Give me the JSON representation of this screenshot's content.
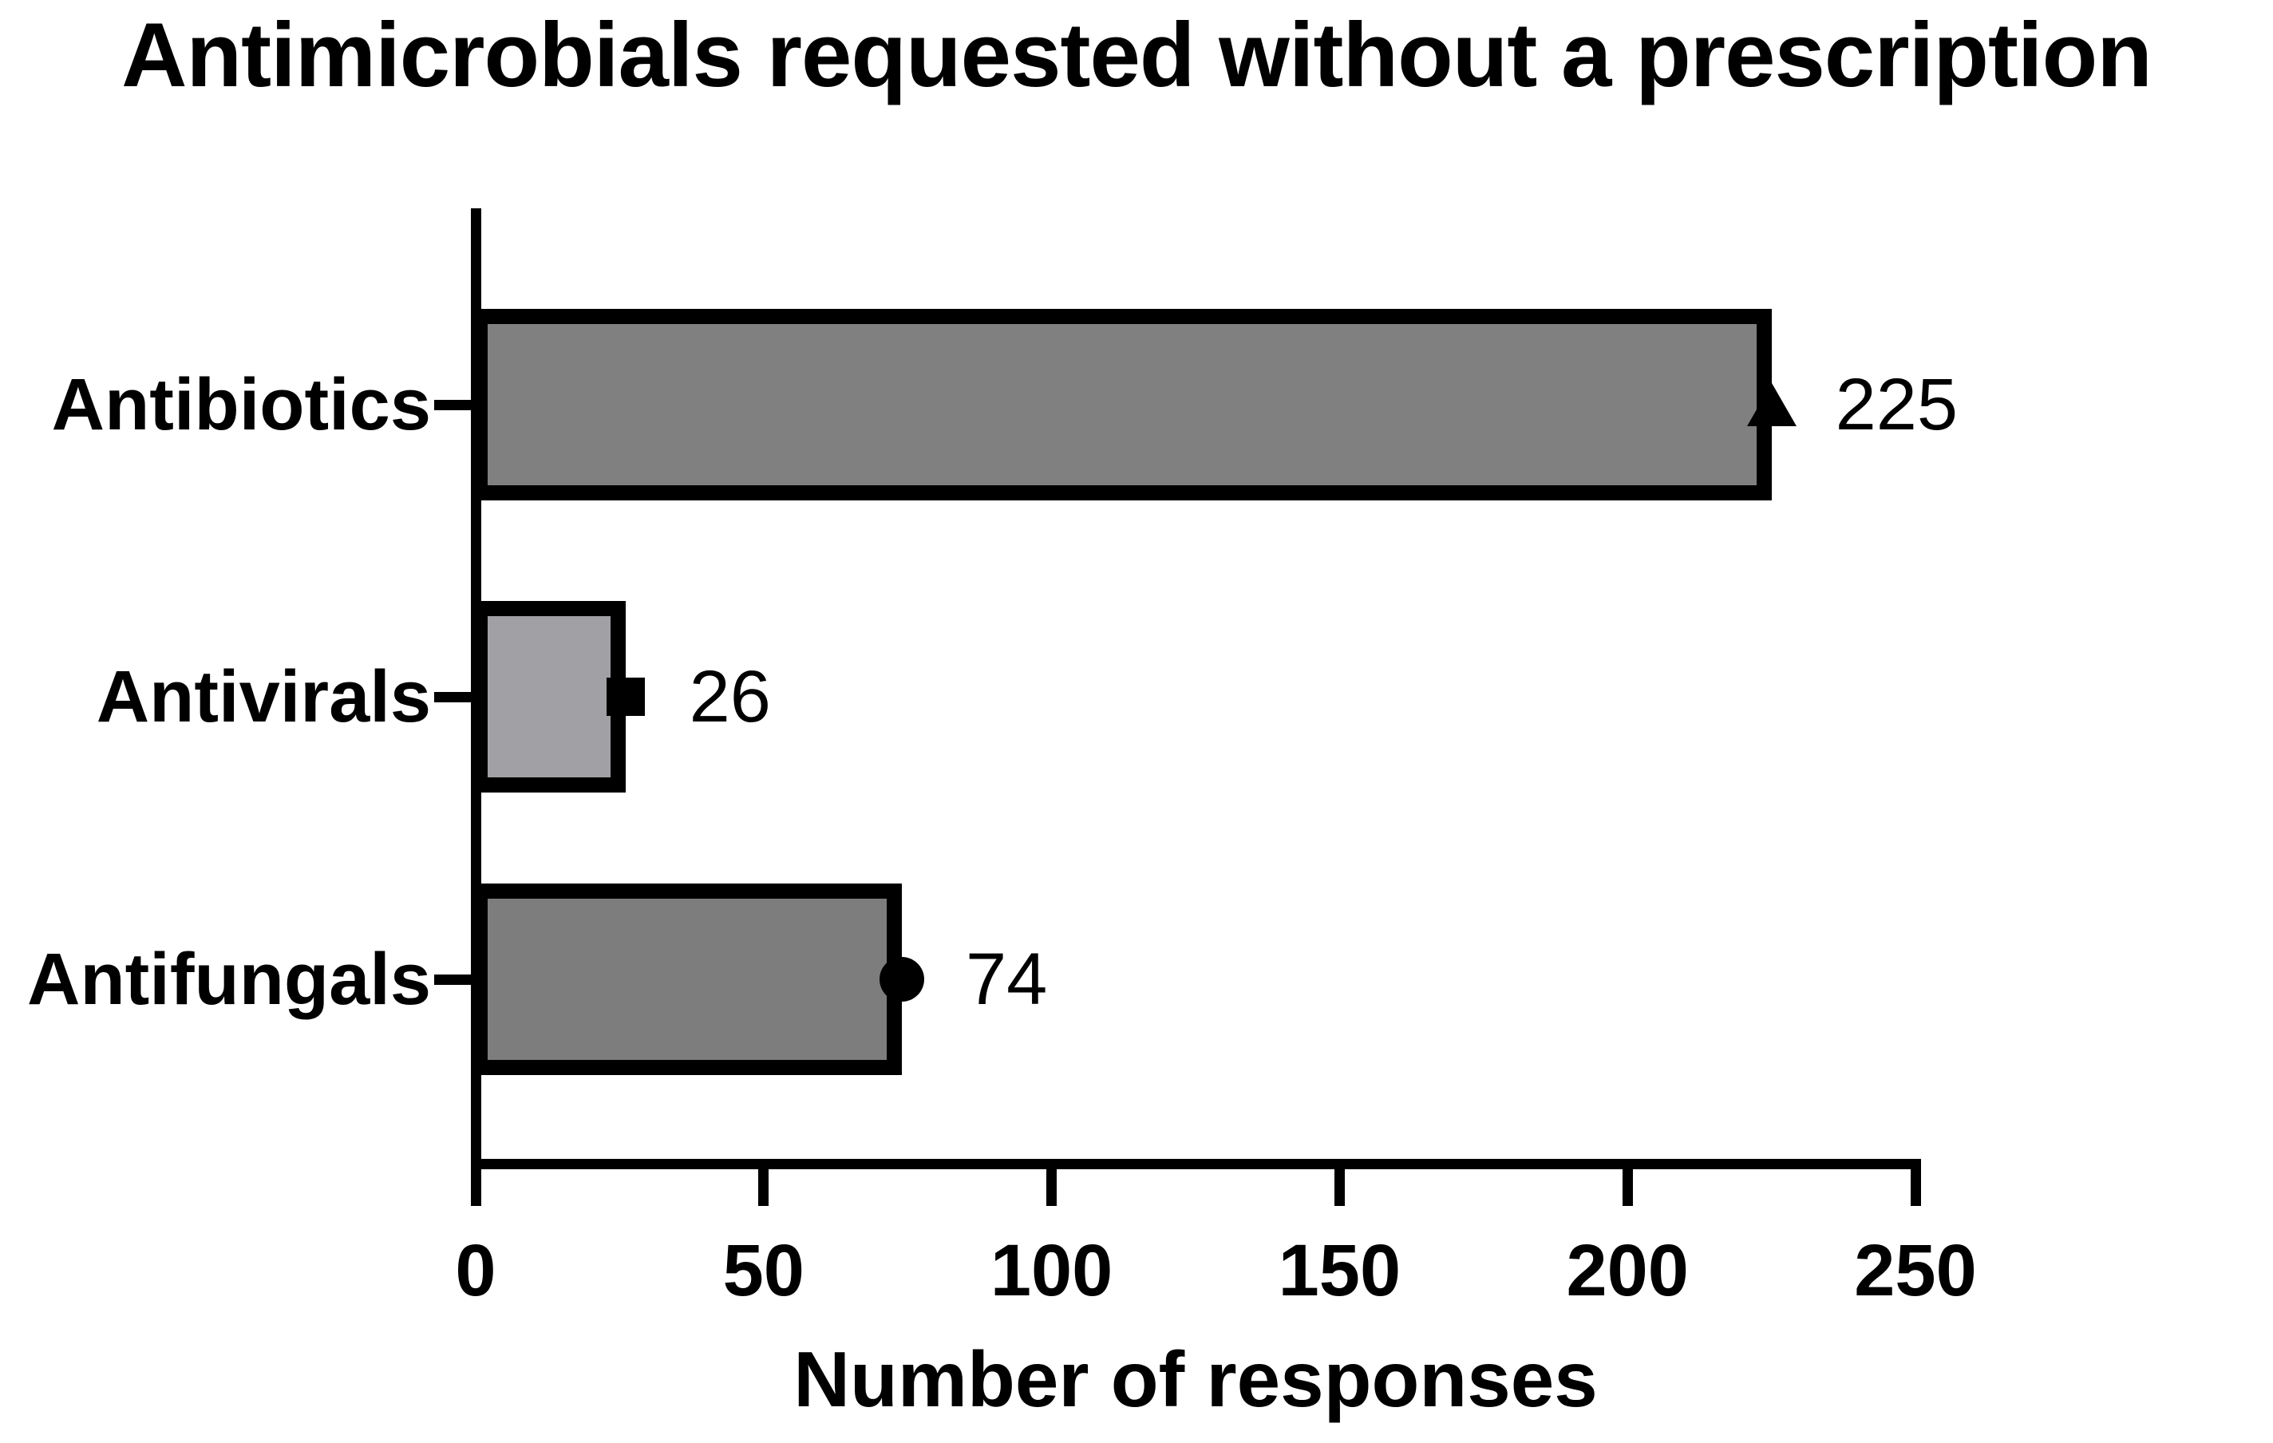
{
  "chart_data": {
    "type": "bar",
    "orientation": "horizontal",
    "title": "Antimicrobials requested without a prescription",
    "xlabel": "Number of responses",
    "categories": [
      "Antibiotics",
      "Antivirals",
      "Antifungals"
    ],
    "values": [
      225,
      26,
      74
    ],
    "data_labels": [
      "225",
      "26",
      "74"
    ],
    "bar_fill_colors": [
      "#808080",
      "#a1a1a5",
      "#7d7d7d"
    ],
    "bar_border_color": "#000000",
    "marker_shapes": [
      "triangle",
      "square",
      "circle"
    ],
    "marker_color": "#000000",
    "xticks": [
      0,
      50,
      100,
      150,
      200,
      250
    ],
    "xtick_labels": [
      "0",
      "50",
      "100",
      "150",
      "200",
      "250"
    ],
    "xlim": [
      0,
      250
    ],
    "axis_color": "#000000",
    "background_color": "#ffffff",
    "grid": false,
    "legend": "none"
  }
}
